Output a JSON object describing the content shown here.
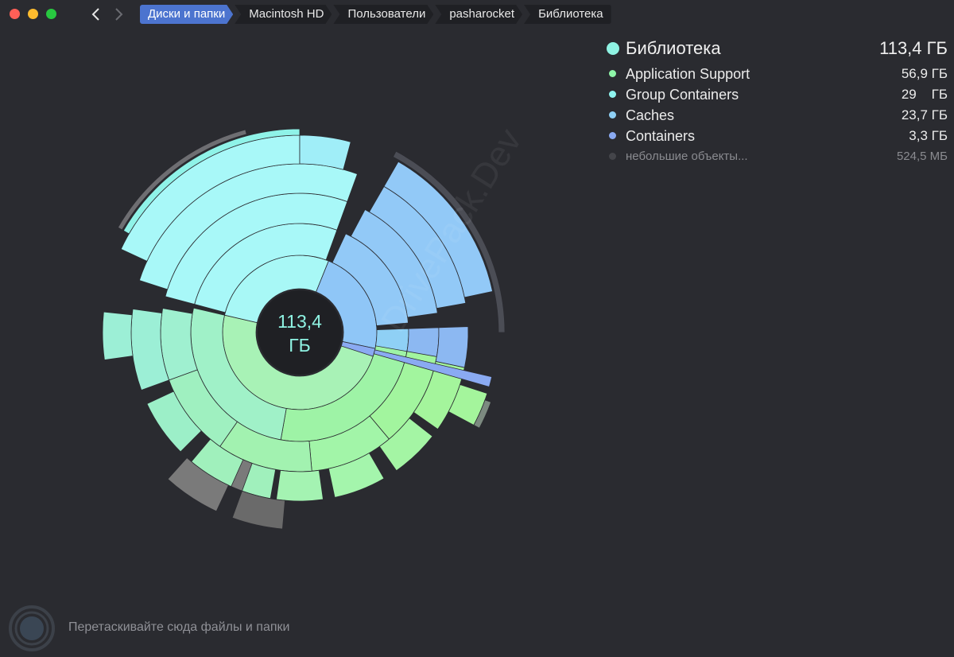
{
  "toolbar": {
    "breadcrumbs": [
      "Диски и папки",
      "Macintosh HD",
      "Пользователи",
      "pasharocket",
      "Библиотека"
    ]
  },
  "center": {
    "value": "113,4",
    "unit": "ГБ"
  },
  "legend": {
    "title": "Библиотека",
    "total": "113,4 ГБ",
    "title_color": "#8ff3e3",
    "items": [
      {
        "name": "Application Support",
        "size": "56,9 ГБ",
        "color": "#8ef5a8"
      },
      {
        "name": "Group Containers",
        "size": "29    ГБ",
        "color": "#8ff5f0"
      },
      {
        "name": "Caches",
        "size": "23,7 ГБ",
        "color": "#8fd0f5"
      },
      {
        "name": "Containers",
        "size": "3,3 ГБ",
        "color": "#8aaaf2"
      },
      {
        "name": "небольшие объекты...",
        "size": "524,5 МБ",
        "color": "#44454a"
      }
    ]
  },
  "footer": {
    "hint": "Перетаскивайте сюда файлы и папки"
  },
  "watermark": "DrivePack.Dev",
  "icons": {
    "back": "chevron-left-icon",
    "forward": "chevron-right-icon",
    "dropzone": "target-icon"
  }
}
